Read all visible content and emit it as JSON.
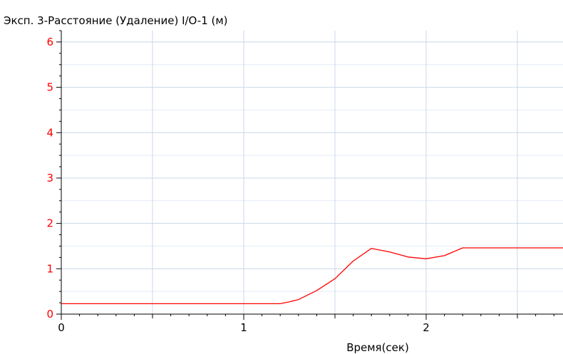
{
  "chart_data": {
    "type": "line",
    "title": "Эксп. 3-Расстояние (Удаление) I/O-1 (м)",
    "xlabel": "Время(сек)",
    "ylabel": "",
    "xlim": [
      0,
      2.75
    ],
    "ylim": [
      0,
      6.25
    ],
    "x_ticks": [
      0,
      1,
      2
    ],
    "x_tick_labels": [
      "0",
      "1",
      "2"
    ],
    "x_minor_ticks": [
      0.5,
      1.5,
      2.5
    ],
    "y_ticks": [
      0,
      1,
      2,
      3,
      4,
      5,
      6
    ],
    "y_tick_labels": [
      "0",
      "1",
      "2",
      "3",
      "4",
      "5",
      "6"
    ],
    "grid": true,
    "legend": "none",
    "series": [
      {
        "x": [
          0,
          0.2,
          0.4,
          0.6,
          0.8,
          1.0,
          1.2,
          1.25,
          1.3,
          1.4,
          1.5,
          1.6,
          1.7,
          1.8,
          1.9,
          2.0,
          2.1,
          2.2,
          2.3,
          2.4,
          2.5,
          2.6,
          2.75
        ],
        "y": [
          0.23,
          0.23,
          0.23,
          0.23,
          0.23,
          0.23,
          0.23,
          0.27,
          0.32,
          0.52,
          0.78,
          1.17,
          1.45,
          1.37,
          1.26,
          1.22,
          1.29,
          1.46,
          1.46,
          1.46,
          1.46,
          1.46,
          1.46
        ]
      }
    ],
    "colors": {
      "line": "#ff0000",
      "y_tick_labels": "#ff0000",
      "grid_major": "#c8d8ea",
      "grid_minor": "#e3ecf6",
      "axis": "#000000"
    }
  }
}
